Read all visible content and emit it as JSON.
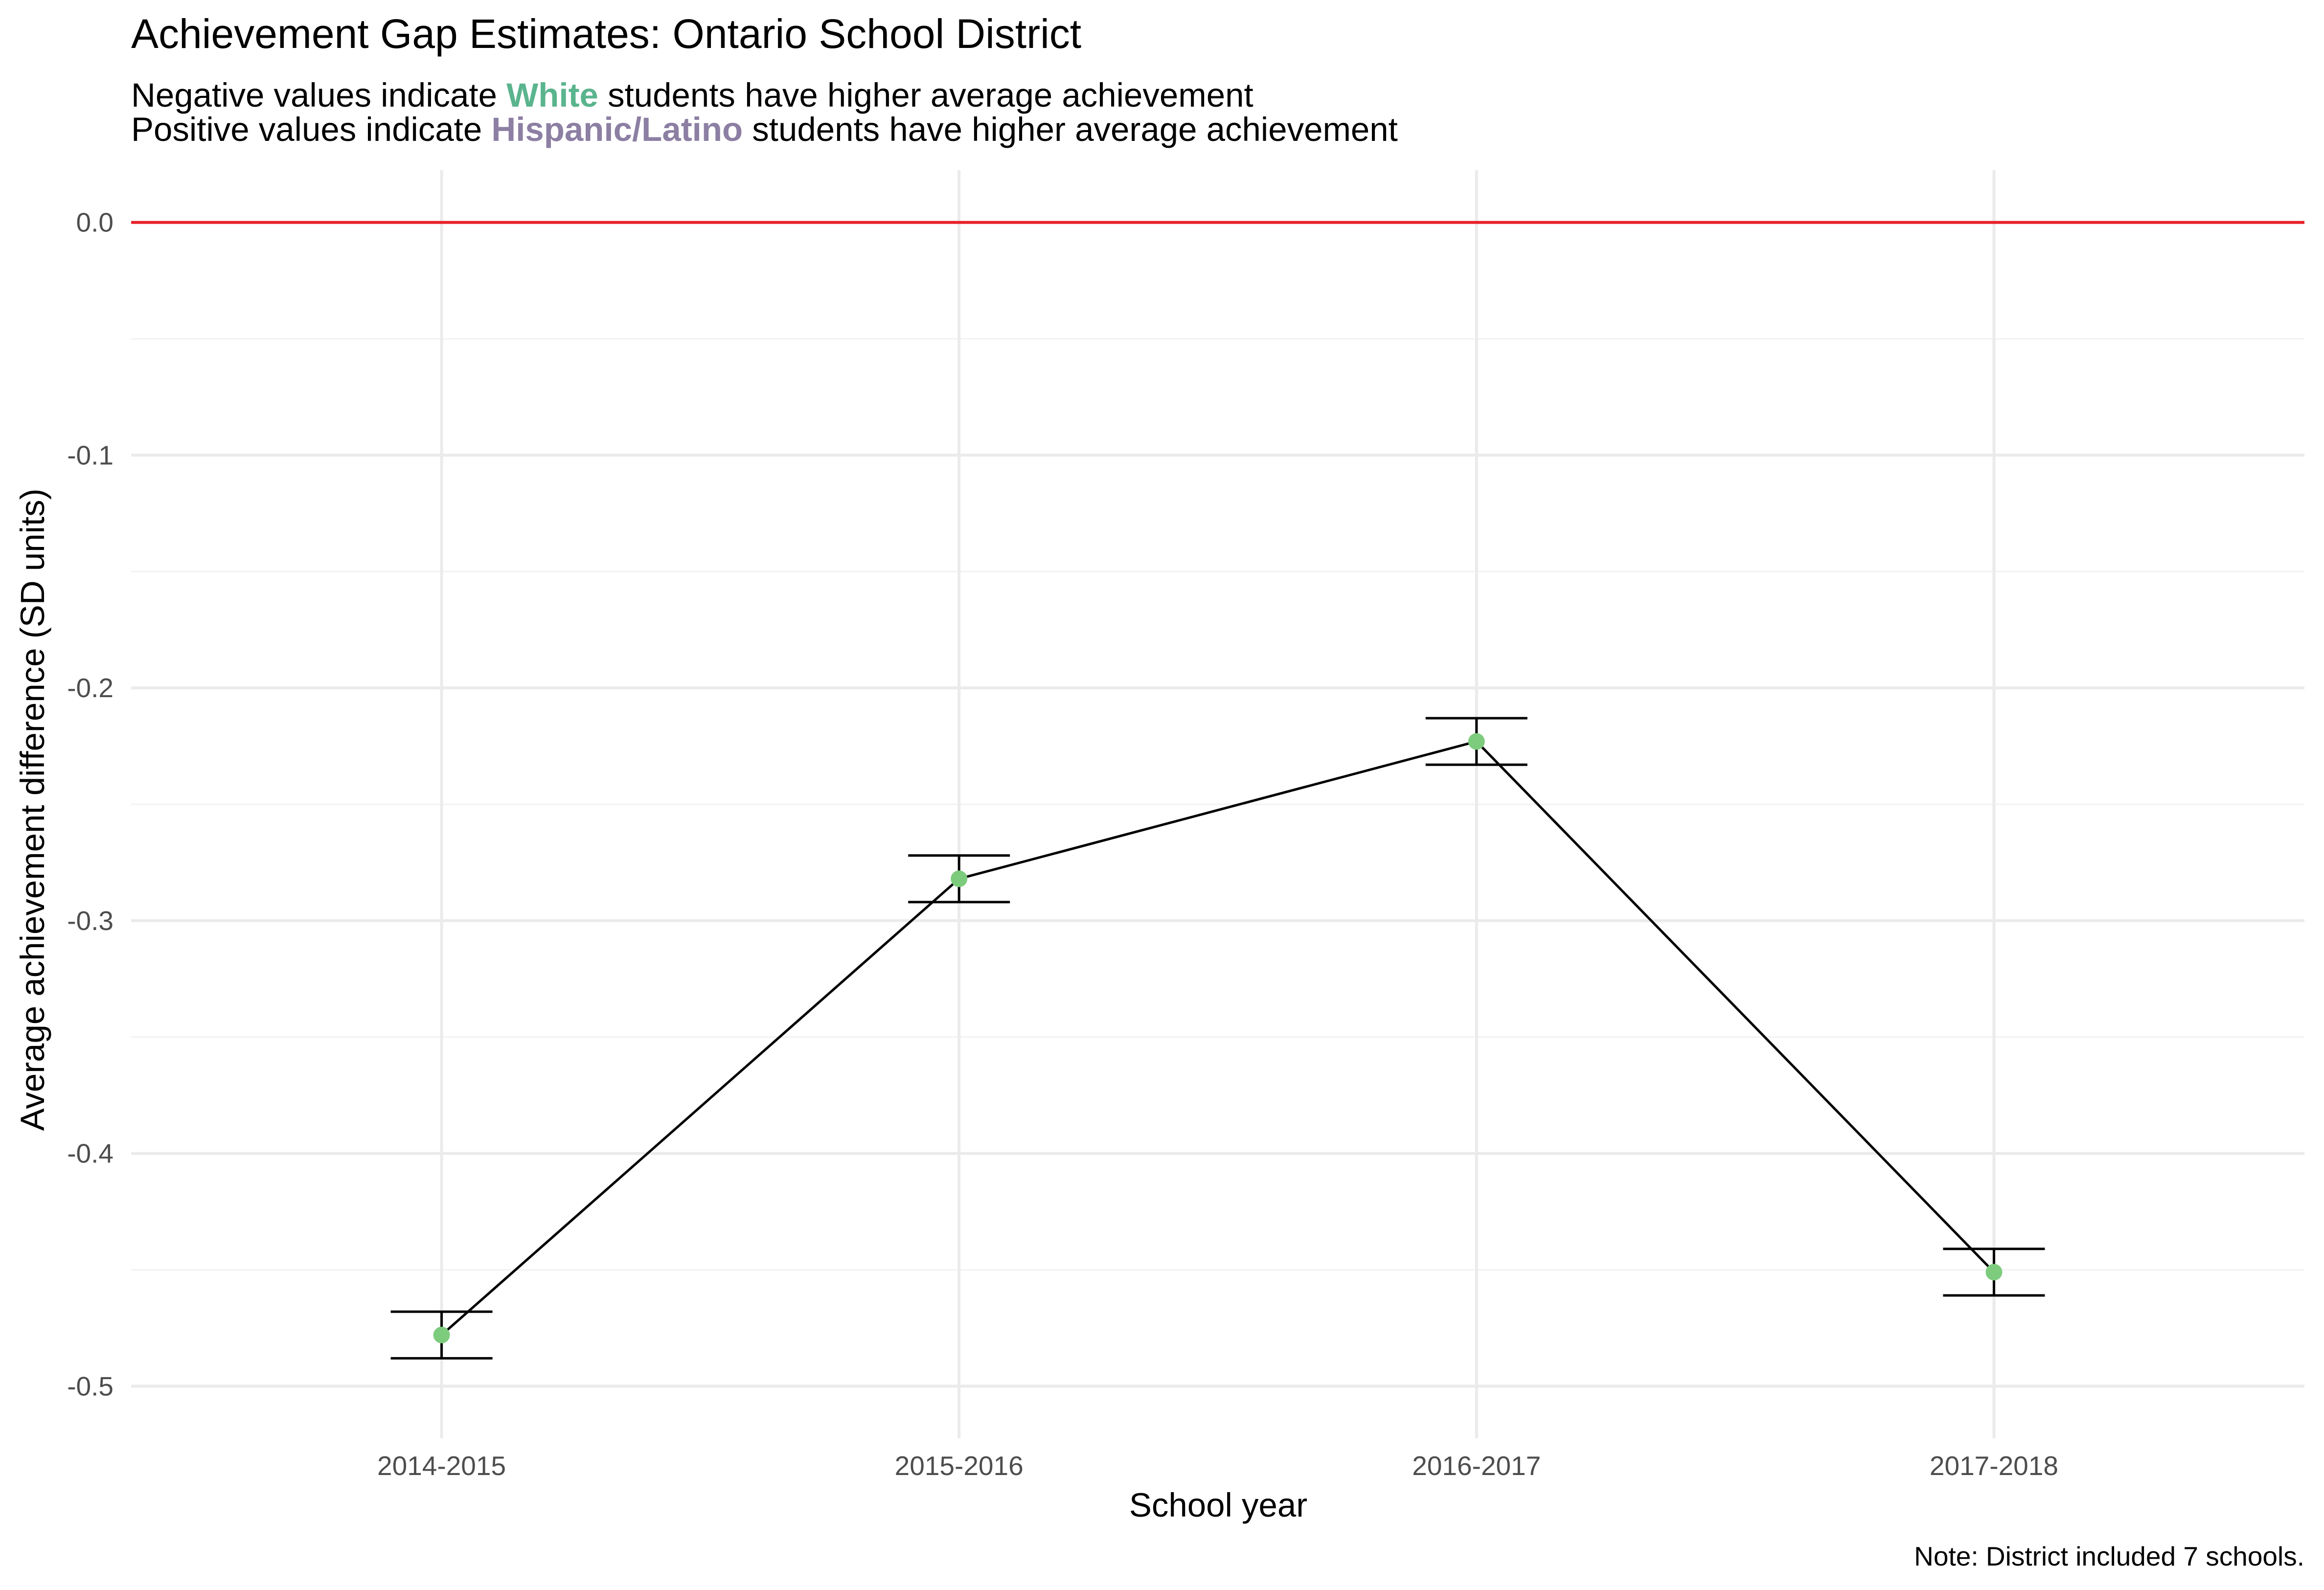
{
  "chart_data": {
    "type": "line",
    "title": "Achievement Gap Estimates: Ontario School District",
    "subtitle": {
      "line1": {
        "before": "Negative values indicate ",
        "highlight": "White",
        "after": " students have higher average achievement"
      },
      "line2": {
        "before": "Positive values indicate ",
        "highlight": "Hispanic/Latino",
        "after": " students have higher average achievement"
      }
    },
    "xlabel": "School year",
    "ylabel": "Average achievement difference (SD units)",
    "caption": "Note: District included 7 schools.",
    "categories": [
      "2014-2015",
      "2015-2016",
      "2016-2017",
      "2017-2018"
    ],
    "series": [
      {
        "values": [
          -0.478,
          -0.282,
          -0.223,
          -0.451
        ],
        "lower": [
          -0.488,
          -0.292,
          -0.233,
          -0.461
        ],
        "upper": [
          -0.468,
          -0.272,
          -0.213,
          -0.441
        ]
      }
    ],
    "ylim": [
      -0.5224,
      0.0224
    ],
    "yticks": [
      0.0,
      -0.1,
      -0.2,
      -0.3,
      -0.4,
      -0.5
    ],
    "ytick_labels": [
      "0.0",
      "-0.1",
      "-0.2",
      "-0.3",
      "-0.4",
      "-0.5"
    ],
    "reference_line": 0.0,
    "grid": true,
    "colors": {
      "white": "#5ab48e",
      "hispanic": "#8c7fa3",
      "point": "#7dcc7d",
      "reference": "#e8202a"
    }
  }
}
